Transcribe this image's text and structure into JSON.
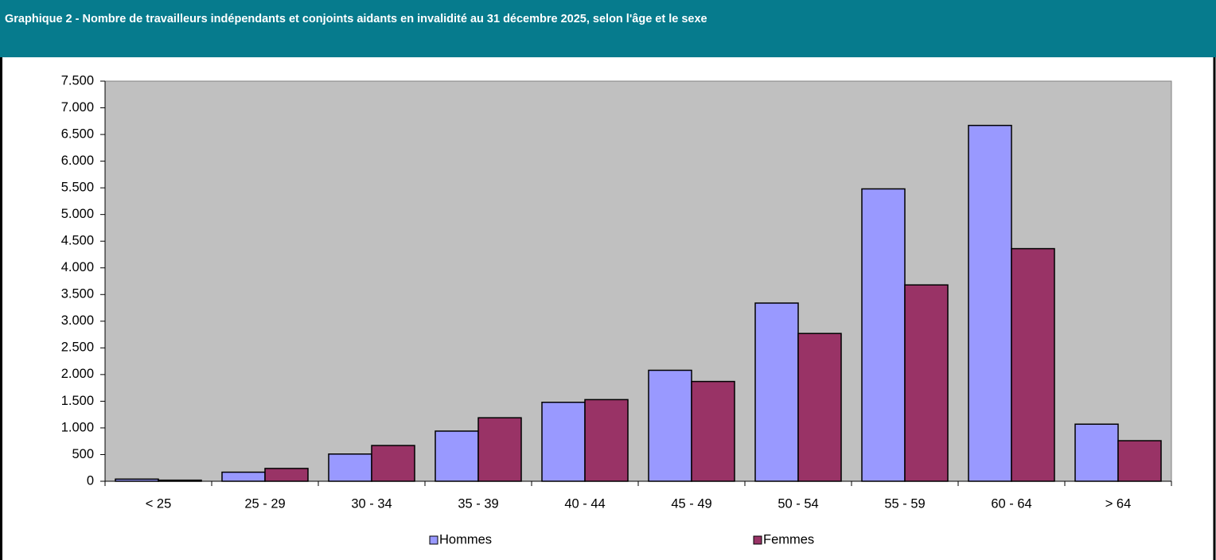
{
  "chart_data": {
    "type": "bar",
    "title": "Graphique 2 - Nombre de travailleurs indépendants et conjoints aidants en invalidité au 31 décembre 2025, selon l'âge et le sexe",
    "categories": [
      "< 25",
      "25 - 29",
      "30 - 34",
      "35 - 39",
      "40 - 44",
      "45 - 49",
      "50 - 54",
      "55 - 59",
      "60 - 64",
      "> 64"
    ],
    "series": [
      {
        "name": "Hommes",
        "color": "#9999FF",
        "values": [
          40,
          170,
          510,
          940,
          1480,
          2080,
          3340,
          5480,
          6670,
          1070
        ]
      },
      {
        "name": "Femmes",
        "color": "#993366",
        "values": [
          20,
          240,
          670,
          1190,
          1530,
          1870,
          2770,
          3680,
          4360,
          760
        ]
      }
    ],
    "ylim": [
      0,
      7500
    ],
    "yticks": [
      0,
      500,
      {
        "value": 1000,
        "label": "1.000"
      },
      {
        "value": 1500,
        "label": "1.500"
      },
      {
        "value": 2000,
        "label": "2.000"
      },
      {
        "value": 2500,
        "label": "2.500"
      },
      {
        "value": 3000,
        "label": "3.000"
      },
      {
        "value": 3500,
        "label": "3.500"
      },
      {
        "value": 4000,
        "label": "4.000"
      },
      {
        "value": 4500,
        "label": "4.500"
      },
      {
        "value": 5000,
        "label": "5.000"
      },
      {
        "value": 5500,
        "label": "5.500"
      },
      {
        "value": 6000,
        "label": "6.000"
      },
      {
        "value": 6500,
        "label": "6.500"
      },
      {
        "value": 7000,
        "label": "7.000"
      },
      {
        "value": 7500,
        "label": "7.500"
      }
    ],
    "grid": false,
    "legend": "bottom"
  }
}
